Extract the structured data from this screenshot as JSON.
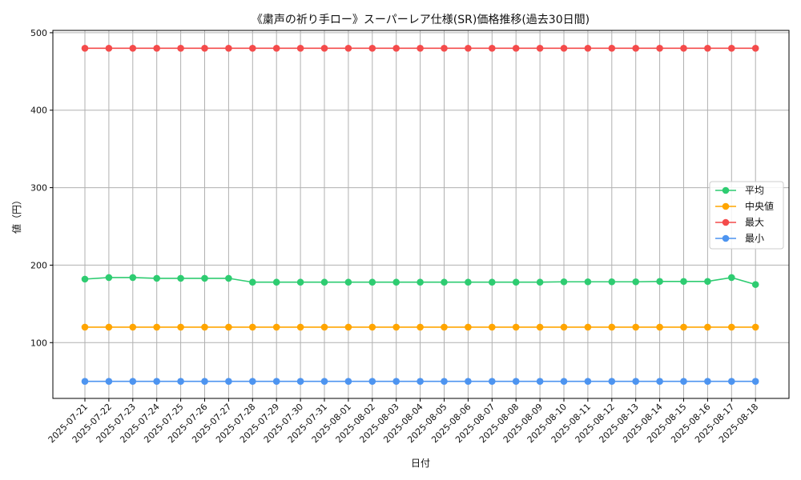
{
  "chart_data": {
    "type": "line",
    "title": "《粛声の祈り手ロー》スーパーレア仕様(SR)価格推移(過去30日間)",
    "xlabel": "日付",
    "ylabel": "値（円）",
    "ylim": [
      28,
      503
    ],
    "yticks": [
      100,
      200,
      300,
      400,
      500
    ],
    "grid": true,
    "legend_position": "center-right",
    "categories": [
      "2025-07-21",
      "2025-07-22",
      "2025-07-23",
      "2025-07-24",
      "2025-07-25",
      "2025-07-26",
      "2025-07-27",
      "2025-07-28",
      "2025-07-29",
      "2025-07-30",
      "2025-07-31",
      "2025-08-01",
      "2025-08-02",
      "2025-08-03",
      "2025-08-04",
      "2025-08-05",
      "2025-08-06",
      "2025-08-07",
      "2025-08-08",
      "2025-08-09",
      "2025-08-10",
      "2025-08-11",
      "2025-08-12",
      "2025-08-13",
      "2025-08-14",
      "2025-08-15",
      "2025-08-16",
      "2025-08-17",
      "2025-08-18"
    ],
    "series": [
      {
        "name": "平均",
        "color": "#2ecc71",
        "values": [
          182,
          184,
          184,
          183,
          183,
          183,
          183,
          178,
          178,
          178,
          178,
          178,
          178,
          178,
          178,
          178,
          178,
          178,
          178,
          178,
          178.5,
          178.5,
          178.5,
          178.5,
          179,
          179,
          179,
          184,
          175
        ]
      },
      {
        "name": "中央値",
        "color": "#ffa500",
        "values": [
          120,
          120,
          120,
          120,
          120,
          120,
          120,
          120,
          120,
          120,
          120,
          120,
          120,
          120,
          120,
          120,
          120,
          120,
          120,
          120,
          120,
          120,
          120,
          120,
          120,
          120,
          120,
          120,
          120
        ]
      },
      {
        "name": "最大",
        "color": "#f44b4b",
        "values": [
          480,
          480,
          480,
          480,
          480,
          480,
          480,
          480,
          480,
          480,
          480,
          480,
          480,
          480,
          480,
          480,
          480,
          480,
          480,
          480,
          480,
          480,
          480,
          480,
          480,
          480,
          480,
          480,
          480
        ]
      },
      {
        "name": "最小",
        "color": "#4d94f0",
        "values": [
          50,
          50,
          50,
          50,
          50,
          50,
          50,
          50,
          50,
          50,
          50,
          50,
          50,
          50,
          50,
          50,
          50,
          50,
          50,
          50,
          50,
          50,
          50,
          50,
          50,
          50,
          50,
          50,
          50
        ]
      }
    ]
  }
}
